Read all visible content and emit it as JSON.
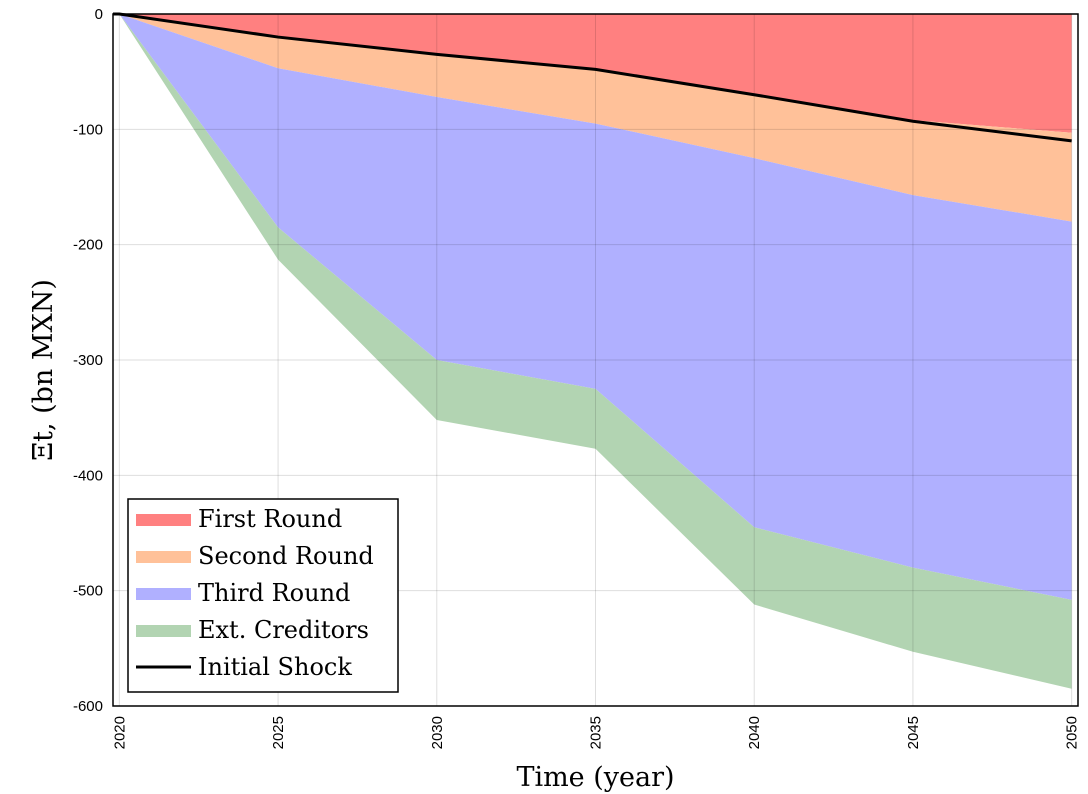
{
  "chart_data": {
    "type": "area",
    "xlabel": "Time (year)",
    "ylabel": "Ξt, (bn MXN)",
    "xlim": [
      2019.8,
      2050.2
    ],
    "ylim": [
      -600,
      0
    ],
    "grid": true,
    "legend_position": "bottom-left",
    "x_ticks": [
      2020,
      2025,
      2030,
      2035,
      2040,
      2045,
      2050
    ],
    "y_ticks": [
      0,
      -100,
      -200,
      -300,
      -400,
      -500,
      -600
    ],
    "x": [
      2019.8,
      2020,
      2025,
      2030,
      2035,
      2040,
      2045,
      2050
    ],
    "series": [
      {
        "name": "First Round",
        "color": "#ff8080",
        "values": [
          0,
          0,
          -20,
          -35,
          -48,
          -70,
          -92,
          -103
        ]
      },
      {
        "name": "Second Round",
        "color": "#ffc199",
        "values": [
          0,
          0,
          -47,
          -72,
          -95,
          -125,
          -157,
          -180
        ]
      },
      {
        "name": "Third Round",
        "color": "#b0b0ff",
        "values": [
          0,
          0,
          -185,
          -300,
          -325,
          -445,
          -480,
          -508
        ]
      },
      {
        "name": "Ext. Creditors",
        "color": "#b2d4b2",
        "values": [
          0,
          0,
          -213,
          -352,
          -377,
          -512,
          -553,
          -585
        ]
      }
    ],
    "line": {
      "name": "Initial Shock",
      "color": "#000000",
      "values": [
        0,
        0,
        -20,
        -35,
        -48,
        -70,
        -93,
        -110
      ]
    }
  }
}
